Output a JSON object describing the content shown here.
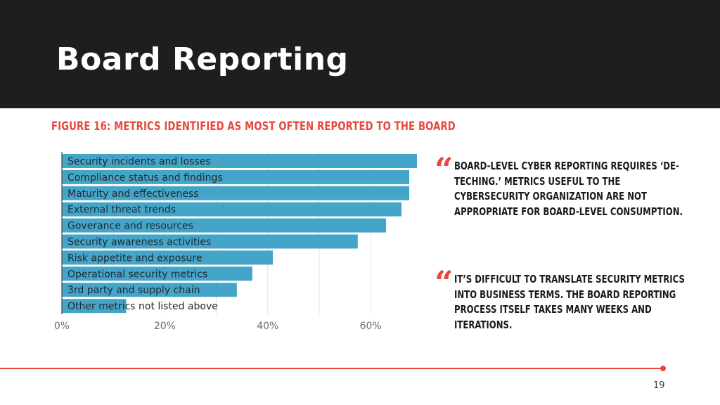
{
  "slide": {
    "title": "Board Reporting",
    "page_number": "19"
  },
  "figure_title": "FIGURE 16: METRICS IDENTIFIED AS MOST OFTEN REPORTED TO THE BOARD",
  "quotes": [
    {
      "mark": "“",
      "text": "BOARD-LEVEL CYBER REPORTING REQUIRES ‘DE-TECHING.’ METRICS USEFUL TO THE CYBERSECURITY ORGANIZATION ARE NOT APPROPRIATE FOR BOARD-LEVEL CONSUMPTION."
    },
    {
      "mark": "“",
      "text": "IT’S DIFFICULT TO TRANSLATE SECURITY METRICS INTO BUSINESS TERMS. THE BOARD REPORTING PROCESS ITSELF TAKES MANY WEEKS AND ITERATIONS."
    }
  ],
  "colors": {
    "header_bg": "#1e1e1e",
    "accent": "#e8483c",
    "bar": "#45a5c8",
    "grid": "#e3e3e3"
  },
  "chart_data": {
    "type": "bar",
    "orientation": "horizontal",
    "title": "FIGURE 16: METRICS IDENTIFIED AS MOST OFTEN REPORTED TO THE BOARD",
    "categories": [
      "Security incidents and losses",
      "Compliance status and findings",
      "Maturity and effectiveness",
      "External threat trends",
      "Goverance and resources",
      "Security awareness activities",
      "Risk appetite and exposure",
      "Operational security metrics",
      "3rd party and supply chain",
      "Other metrics not listed above"
    ],
    "values": [
      69,
      67.5,
      67.5,
      66,
      63,
      57.5,
      41,
      37,
      34,
      12.5
    ],
    "xlim": [
      0,
      69
    ],
    "ticks": [
      0,
      20,
      40,
      60
    ],
    "tick_labels": [
      "0%",
      "20%",
      "40%",
      "60%"
    ],
    "grid": true,
    "legend": "none",
    "xlabel": "",
    "ylabel": ""
  }
}
